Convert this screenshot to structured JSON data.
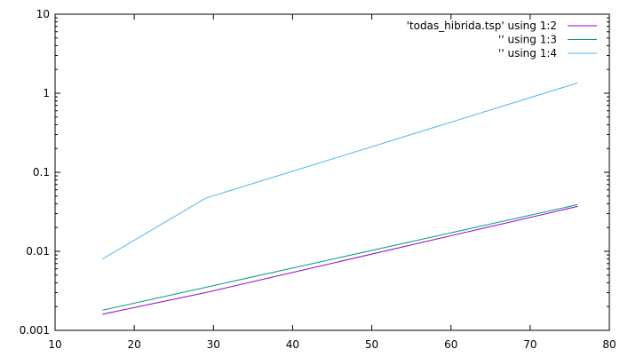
{
  "chart_data": {
    "type": "line",
    "title": "",
    "xlabel": "",
    "ylabel": "",
    "xlim": [
      10,
      80
    ],
    "ylim": [
      0.001,
      10
    ],
    "yscale": "log",
    "grid": false,
    "legend_position": "top-right",
    "x_ticks": [
      10,
      20,
      30,
      40,
      50,
      60,
      70,
      80
    ],
    "x_tick_labels": [
      "10",
      "20",
      "30",
      "40",
      "50",
      "60",
      "70",
      "80"
    ],
    "y_ticks": [
      0.001,
      0.01,
      0.1,
      1,
      10
    ],
    "y_tick_labels": [
      "0.001",
      "0.01",
      "0.1",
      "1",
      "10"
    ],
    "series": [
      {
        "name": "'todas_hibrida.tsp' using 1:2",
        "color": "#9400d3",
        "x": [
          16,
          29,
          76
        ],
        "y": [
          0.0016,
          0.003,
          0.037
        ]
      },
      {
        "name": "'' using 1:3",
        "color": "#009e73",
        "x": [
          16,
          29,
          76
        ],
        "y": [
          0.0018,
          0.0035,
          0.039
        ]
      },
      {
        "name": "'' using 1:4",
        "color": "#56b4e9",
        "x": [
          16,
          29,
          76
        ],
        "y": [
          0.008,
          0.047,
          1.35
        ]
      }
    ]
  }
}
